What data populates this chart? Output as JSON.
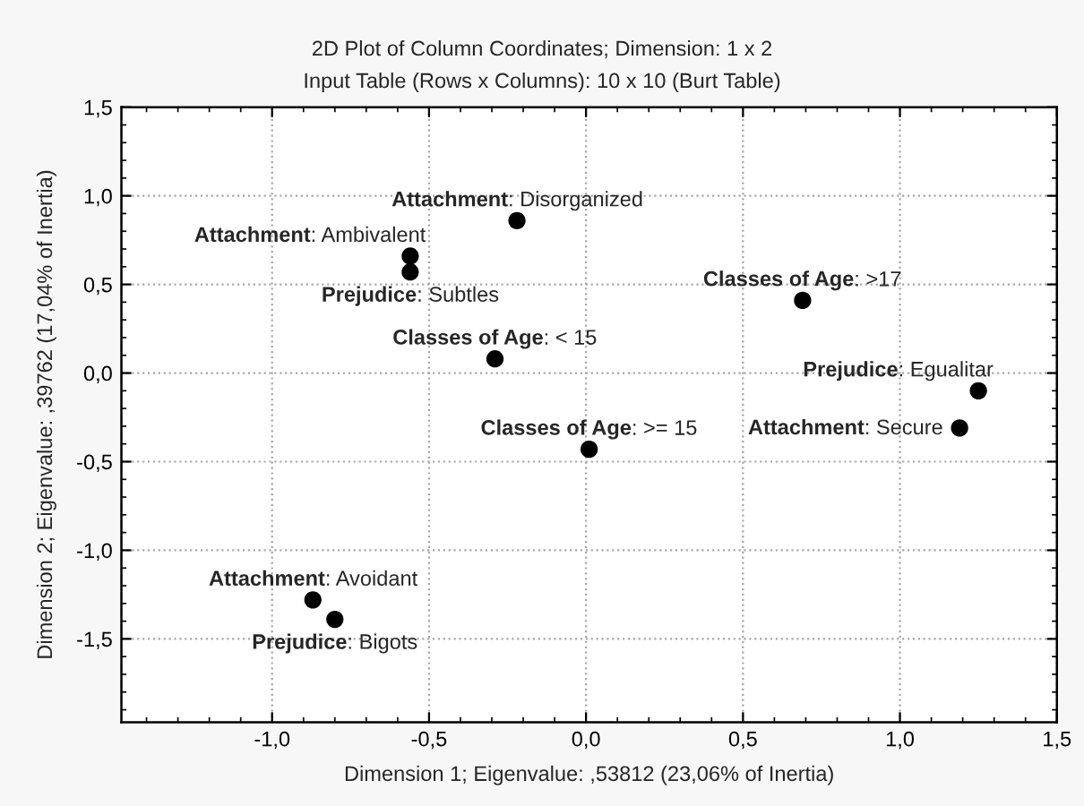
{
  "chart_data": {
    "type": "scatter",
    "title": "2D Plot of Column Coordinates; Dimension: 1 x 2",
    "subtitle": "Input Table (Rows x Columns): 10 x 10 (Burt Table)",
    "xlabel": "Dimension 1; Eigenvalue: ,53812 (23,06% of Inertia)",
    "ylabel": "Dimension 2; Eigenvalue: ,39762 (17,04% of Inertia)",
    "x": [
      -0.22,
      -0.56,
      -0.56,
      -0.29,
      0.01,
      0.69,
      1.25,
      1.19,
      -0.87,
      -0.8
    ],
    "values": [
      0.86,
      0.66,
      0.57,
      0.08,
      -0.43,
      0.41,
      -0.1,
      -0.31,
      -1.28,
      -1.39
    ],
    "color": "#000000",
    "marker": "circle",
    "grid": true,
    "xlim": [
      -1.48,
      1.5
    ],
    "ylim": [
      -1.97,
      1.5
    ],
    "xticks": [
      {
        "value": -1.0,
        "label": "-1,0"
      },
      {
        "value": -0.5,
        "label": "-0,5"
      },
      {
        "value": 0,
        "label": "0,0"
      },
      {
        "value": 0.5,
        "label": "0,5"
      },
      {
        "value": 1.0,
        "label": "1,0"
      },
      {
        "value": 1.5,
        "label": "1,5"
      }
    ],
    "yticks": [
      {
        "value": -1.5,
        "label": "-1,5"
      },
      {
        "value": -1.0,
        "label": "-1,0"
      },
      {
        "value": -0.5,
        "label": "-0,5"
      },
      {
        "value": 0,
        "label": "0,0"
      },
      {
        "value": 0.5,
        "label": "0,5"
      },
      {
        "value": 1.0,
        "label": "1,0"
      },
      {
        "value": 1.5,
        "label": "1,5"
      }
    ],
    "annotations": [
      {
        "text": "Attachment: Disorganized",
        "x": -0.22,
        "y": 0.86
      },
      {
        "text": "Attachment: Ambivalent",
        "x": -0.56,
        "y": 0.66
      },
      {
        "text": "Prejudice: Subtles",
        "x": -0.56,
        "y": 0.57
      },
      {
        "text": "Classes of Age: < 15",
        "x": -0.29,
        "y": 0.08
      },
      {
        "text": "Classes of Age: >= 15",
        "x": 0.01,
        "y": -0.43
      },
      {
        "text": "Classes of Age: >17",
        "x": 0.69,
        "y": 0.41
      },
      {
        "text": "Prejudice: Egualitar",
        "x": 1.25,
        "y": -0.1
      },
      {
        "text": "Attachment: Secure",
        "x": 1.19,
        "y": -0.31
      },
      {
        "text": "Attachment: Avoidant",
        "x": -0.87,
        "y": -1.28
      },
      {
        "text": "Prejudice: Bigots",
        "x": -0.8,
        "y": -1.39
      }
    ]
  }
}
